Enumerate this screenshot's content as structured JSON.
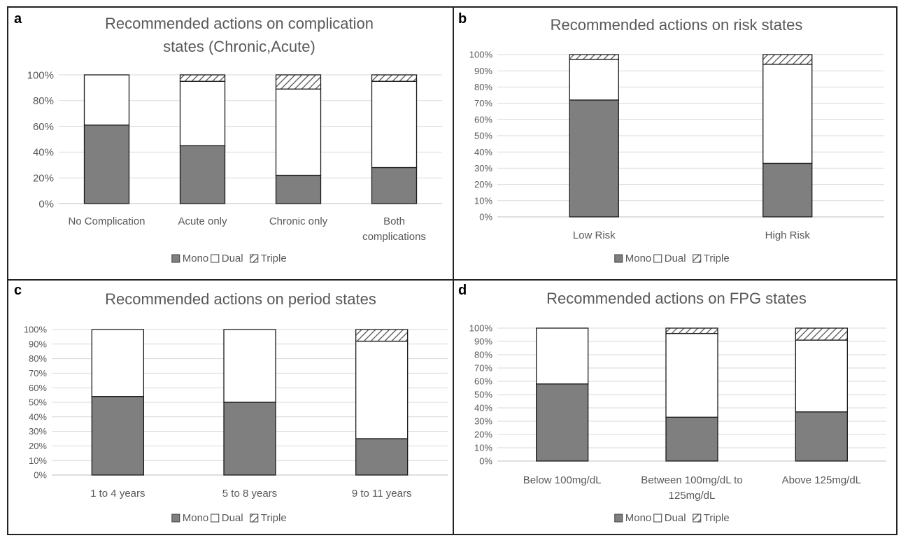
{
  "figure": {
    "panels": [
      "a",
      "b",
      "c",
      "d"
    ]
  },
  "legend": {
    "mono": "Mono",
    "dual": "Dual",
    "triple": "Triple"
  },
  "colors": {
    "mono": "#7f7f7f",
    "dual": "#ffffff",
    "triple_hatch": "#555555",
    "gridline": "#d9d9d9",
    "bar_stroke": "#1a1a1a",
    "axis_text": "#595959",
    "title_text": "#595959"
  },
  "chart_data": [
    {
      "panel_label": "a",
      "type": "bar",
      "stacked": true,
      "title": "Recommended  actions on complication states (Chronic,Acute)",
      "title_lines": [
        "Recommended  actions on complication",
        "states (Chronic,Acute)"
      ],
      "categories": [
        "No Complication",
        "Acute only",
        "Chronic only",
        "Both complications"
      ],
      "category_lines": [
        [
          "No Complication"
        ],
        [
          "Acute only"
        ],
        [
          "Chronic only"
        ],
        [
          "Both",
          "complications"
        ]
      ],
      "series": [
        {
          "name": "Mono",
          "values": [
            61,
            45,
            22,
            28
          ]
        },
        {
          "name": "Dual",
          "values": [
            39,
            50,
            67,
            67
          ]
        },
        {
          "name": "Triple",
          "values": [
            0,
            5,
            11,
            5
          ]
        }
      ],
      "yticks": [
        "0%",
        "20%",
        "40%",
        "60%",
        "80%",
        "100%"
      ],
      "ylim": [
        0,
        100
      ],
      "grid": true,
      "legend_position": "bottom"
    },
    {
      "panel_label": "b",
      "type": "bar",
      "stacked": true,
      "title": "Recommended  actions on risk states",
      "title_lines": [
        "Recommended  actions on risk states"
      ],
      "categories": [
        "Low Risk",
        "High Risk"
      ],
      "category_lines": [
        [
          "Low Risk"
        ],
        [
          "High Risk"
        ]
      ],
      "series": [
        {
          "name": "Mono",
          "values": [
            72,
            33
          ]
        },
        {
          "name": "Dual",
          "values": [
            25,
            61
          ]
        },
        {
          "name": "Triple",
          "values": [
            3,
            6
          ]
        }
      ],
      "yticks": [
        "0%",
        "10%",
        "20%",
        "30%",
        "40%",
        "50%",
        "60%",
        "70%",
        "80%",
        "90%",
        "100%"
      ],
      "ylim": [
        0,
        100
      ],
      "grid": true,
      "legend_position": "bottom"
    },
    {
      "panel_label": "c",
      "type": "bar",
      "stacked": true,
      "title": "Recommended  actions on period states",
      "title_lines": [
        "Recommended  actions on period states"
      ],
      "categories": [
        "1 to 4 years",
        "5 to 8 years",
        "9 to 11 years"
      ],
      "category_lines": [
        [
          "1 to 4 years"
        ],
        [
          "5 to 8 years"
        ],
        [
          "9 to 11 years"
        ]
      ],
      "series": [
        {
          "name": "Mono",
          "values": [
            54,
            50,
            25
          ]
        },
        {
          "name": "Dual",
          "values": [
            46,
            50,
            67
          ]
        },
        {
          "name": "Triple",
          "values": [
            0,
            0,
            8
          ]
        }
      ],
      "yticks": [
        "0%",
        "10%",
        "20%",
        "30%",
        "40%",
        "50%",
        "60%",
        "70%",
        "80%",
        "90%",
        "100%"
      ],
      "ylim": [
        0,
        100
      ],
      "grid": true,
      "legend_position": "bottom"
    },
    {
      "panel_label": "d",
      "type": "bar",
      "stacked": true,
      "title": "Recommended  actions on FPG states",
      "title_lines": [
        "Recommended  actions on FPG states"
      ],
      "categories": [
        "Below 100mg/dL",
        "Between 100mg/dL to 125mg/dL",
        "Above 125mg/dL"
      ],
      "category_lines": [
        [
          "Below 100mg/dL"
        ],
        [
          "Between 100mg/dL to",
          "125mg/dL"
        ],
        [
          "Above 125mg/dL"
        ]
      ],
      "series": [
        {
          "name": "Mono",
          "values": [
            58,
            33,
            37
          ]
        },
        {
          "name": "Dual",
          "values": [
            42,
            63,
            54
          ]
        },
        {
          "name": "Triple",
          "values": [
            0,
            4,
            9
          ]
        }
      ],
      "yticks": [
        "0%",
        "10%",
        "20%",
        "30%",
        "40%",
        "50%",
        "60%",
        "70%",
        "80%",
        "90%",
        "100%"
      ],
      "ylim": [
        0,
        100
      ],
      "grid": true,
      "legend_position": "bottom"
    }
  ]
}
